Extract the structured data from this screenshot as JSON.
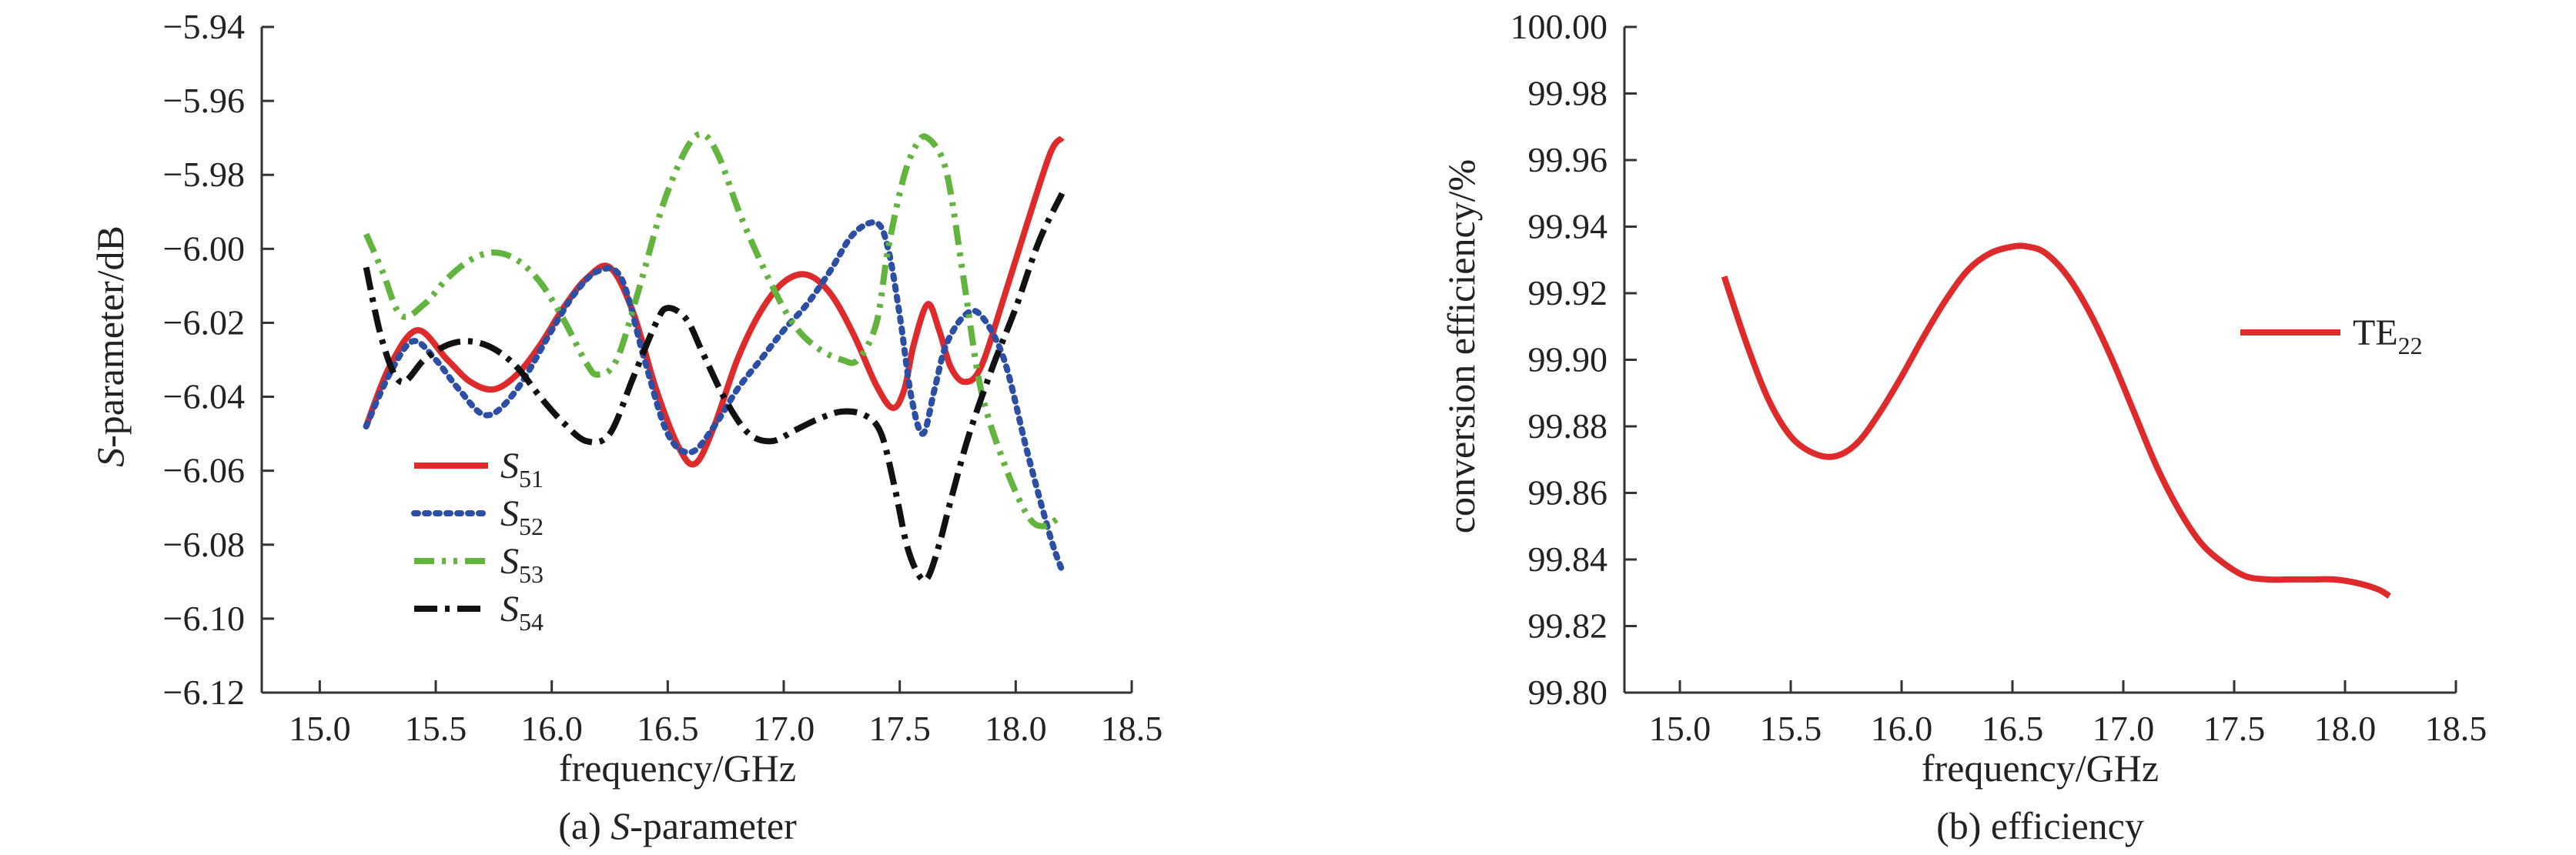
{
  "chart_data": [
    {
      "type": "line",
      "caption_prefix": "(a) ",
      "caption_italic": "S",
      "caption_rest": "-parameter",
      "xlabel": "frequency/GHz",
      "ylabel_italic": "S",
      "ylabel_rest": "-parameter/dB",
      "xlim": [
        14.75,
        18.5
      ],
      "ylim": [
        -6.12,
        -5.94
      ],
      "xticks": [
        15.0,
        15.5,
        16.0,
        16.5,
        17.0,
        17.5,
        18.0,
        18.5
      ],
      "xtick_labels": [
        "15.0",
        "15.5",
        "16.0",
        "16.5",
        "17.0",
        "17.5",
        "18.0",
        "18.5"
      ],
      "yticks": [
        -6.12,
        -6.1,
        -6.08,
        -6.06,
        -6.04,
        -6.02,
        -6.0,
        -5.98,
        -5.96,
        -5.94
      ],
      "ytick_labels": [
        "−6.12",
        "−6.10",
        "−6.08",
        "−6.06",
        "−6.04",
        "−6.02",
        "−6.00",
        "−5.98",
        "−5.96",
        "−5.94"
      ],
      "legend_position": "lower-left",
      "grid": false,
      "series": [
        {
          "name_main": "S",
          "name_sub": "51",
          "color": "#dd2a2a",
          "dash": "solid",
          "x": [
            15.2,
            15.3,
            15.42,
            15.55,
            15.65,
            15.75,
            15.85,
            15.95,
            16.05,
            16.15,
            16.25,
            16.35,
            16.45,
            16.55,
            16.62,
            16.7,
            16.8,
            16.9,
            17.0,
            17.1,
            17.2,
            17.3,
            17.4,
            17.47,
            17.52,
            17.56,
            17.62,
            17.67,
            17.72,
            17.78,
            17.85,
            17.95,
            18.05,
            18.15,
            18.2
          ],
          "y": [
            -6.048,
            -6.032,
            -6.022,
            -6.03,
            -6.036,
            -6.038,
            -6.034,
            -6.026,
            -6.016,
            -6.008,
            -6.005,
            -6.017,
            -6.038,
            -6.054,
            -6.058,
            -6.048,
            -6.03,
            -6.017,
            -6.009,
            -6.007,
            -6.012,
            -6.023,
            -6.037,
            -6.043,
            -6.038,
            -6.026,
            -6.015,
            -6.022,
            -6.032,
            -6.036,
            -6.032,
            -6.013,
            -5.993,
            -5.974,
            -5.97
          ]
        },
        {
          "name_main": "S",
          "name_sub": "52",
          "color": "#2d4fa3",
          "dash": "dotted",
          "x": [
            15.2,
            15.3,
            15.4,
            15.5,
            15.6,
            15.72,
            15.85,
            16.0,
            16.1,
            16.2,
            16.3,
            16.4,
            16.5,
            16.6,
            16.7,
            16.8,
            16.9,
            17.0,
            17.1,
            17.2,
            17.3,
            17.4,
            17.45,
            17.5,
            17.55,
            17.6,
            17.65,
            17.7,
            17.78,
            17.85,
            17.95,
            18.05,
            18.15,
            18.2
          ],
          "y": [
            -6.048,
            -6.034,
            -6.025,
            -6.03,
            -6.038,
            -6.045,
            -6.038,
            -6.022,
            -6.012,
            -6.006,
            -6.008,
            -6.03,
            -6.05,
            -6.055,
            -6.048,
            -6.038,
            -6.03,
            -6.022,
            -6.015,
            -6.006,
            -5.996,
            -5.993,
            -6.0,
            -6.018,
            -6.04,
            -6.05,
            -6.038,
            -6.026,
            -6.018,
            -6.018,
            -6.03,
            -6.055,
            -6.078,
            -6.087
          ]
        },
        {
          "name_main": "S",
          "name_sub": "53",
          "color": "#62b43e",
          "dash": "dashdotdot",
          "x": [
            15.2,
            15.27,
            15.35,
            15.45,
            15.55,
            15.65,
            15.75,
            15.85,
            15.95,
            16.05,
            16.15,
            16.2,
            16.28,
            16.38,
            16.48,
            16.58,
            16.65,
            16.72,
            16.82,
            16.95,
            17.05,
            17.15,
            17.25,
            17.32,
            17.4,
            17.45,
            17.52,
            17.58,
            17.62,
            17.68,
            17.72,
            17.78,
            17.85,
            17.95,
            18.05,
            18.12,
            18.2
          ],
          "y": [
            -5.996,
            -6.006,
            -6.018,
            -6.015,
            -6.008,
            -6.003,
            -6.001,
            -6.003,
            -6.009,
            -6.019,
            -6.031,
            -6.034,
            -6.03,
            -6.01,
            -5.988,
            -5.973,
            -5.969,
            -5.975,
            -5.992,
            -6.01,
            -6.021,
            -6.027,
            -6.03,
            -6.03,
            -6.02,
            -6.0,
            -5.98,
            -5.971,
            -5.97,
            -5.975,
            -5.985,
            -6.01,
            -6.038,
            -6.058,
            -6.072,
            -6.075,
            -6.072
          ]
        },
        {
          "name_main": "S",
          "name_sub": "54",
          "color": "#111111",
          "dash": "dashdot",
          "x": [
            15.2,
            15.27,
            15.35,
            15.45,
            15.55,
            15.65,
            15.75,
            15.85,
            15.95,
            16.05,
            16.15,
            16.25,
            16.35,
            16.45,
            16.5,
            16.58,
            16.65,
            16.75,
            16.85,
            16.95,
            17.05,
            17.15,
            17.25,
            17.35,
            17.42,
            17.48,
            17.53,
            17.58,
            17.62,
            17.67,
            17.72,
            17.8,
            17.9,
            18.0,
            18.1,
            18.2
          ],
          "y": [
            -6.005,
            -6.025,
            -6.036,
            -6.03,
            -6.026,
            -6.025,
            -6.027,
            -6.032,
            -6.04,
            -6.047,
            -6.052,
            -6.05,
            -6.035,
            -6.02,
            -6.016,
            -6.019,
            -6.028,
            -6.041,
            -6.05,
            -6.052,
            -6.049,
            -6.046,
            -6.044,
            -6.045,
            -6.05,
            -6.065,
            -6.08,
            -6.088,
            -6.089,
            -6.08,
            -6.068,
            -6.05,
            -6.032,
            -6.016,
            -5.998,
            -5.985
          ]
        }
      ]
    },
    {
      "type": "line",
      "caption": "(b) efficiency",
      "xlabel": "frequency/GHz",
      "ylabel": "conversion efficiency/%",
      "xlim": [
        14.75,
        18.5
      ],
      "ylim": [
        99.8,
        100.0
      ],
      "xticks": [
        15.0,
        15.5,
        16.0,
        16.5,
        17.0,
        17.5,
        18.0,
        18.5
      ],
      "xtick_labels": [
        "15.0",
        "15.5",
        "16.0",
        "16.5",
        "17.0",
        "17.5",
        "18.0",
        "18.5"
      ],
      "yticks": [
        99.8,
        99.82,
        99.84,
        99.86,
        99.88,
        99.9,
        99.92,
        99.94,
        99.96,
        99.98,
        100.0
      ],
      "ytick_labels": [
        "99.80",
        "99.82",
        "99.84",
        "99.86",
        "99.88",
        "99.90",
        "99.92",
        "99.94",
        "99.96",
        "99.98",
        "100.00"
      ],
      "legend_position": "right",
      "grid": false,
      "series": [
        {
          "name_main": "TE",
          "name_sub": "22",
          "color": "#dd2a2a",
          "dash": "solid",
          "x": [
            15.2,
            15.3,
            15.4,
            15.5,
            15.6,
            15.7,
            15.8,
            15.9,
            16.0,
            16.1,
            16.2,
            16.3,
            16.4,
            16.5,
            16.57,
            16.65,
            16.75,
            16.85,
            16.95,
            17.05,
            17.15,
            17.25,
            17.35,
            17.45,
            17.55,
            17.65,
            17.75,
            17.85,
            17.95,
            18.05,
            18.15,
            18.2
          ],
          "y": [
            99.925,
            99.905,
            99.888,
            99.877,
            99.872,
            99.871,
            99.875,
            99.884,
            99.895,
            99.907,
            99.918,
            99.927,
            99.932,
            99.934,
            99.934,
            99.932,
            99.925,
            99.914,
            99.9,
            99.884,
            99.868,
            99.855,
            99.845,
            99.839,
            99.835,
            99.834,
            99.834,
            99.834,
            99.834,
            99.833,
            99.831,
            99.829
          ]
        }
      ]
    }
  ]
}
